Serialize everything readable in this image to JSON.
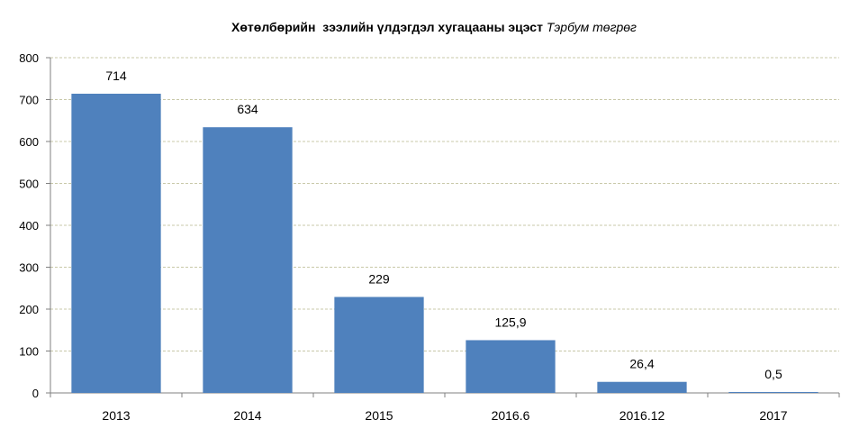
{
  "chart_data": {
    "type": "bar",
    "title": "Хөтөлбөрийн  зээлийн үлдэгдэл хугацааны эцэст",
    "title_unit": "Тэрбум төгрөг",
    "categories": [
      "2013",
      "2014",
      "2015",
      "2016.6",
      "2016.12",
      "2017"
    ],
    "values": [
      714,
      634,
      229,
      125.9,
      26.4,
      0.5
    ],
    "value_labels": [
      "714",
      "634",
      "229",
      "125,9",
      "26,4",
      "0,5"
    ],
    "xlabel": "",
    "ylabel": "",
    "ylim": [
      0,
      800
    ],
    "yticks": [
      0,
      100,
      200,
      300,
      400,
      500,
      600,
      700,
      800
    ],
    "grid": true,
    "legend": "none",
    "bar_color": "#4F81BD",
    "grid_color": "#C8C8A8"
  }
}
